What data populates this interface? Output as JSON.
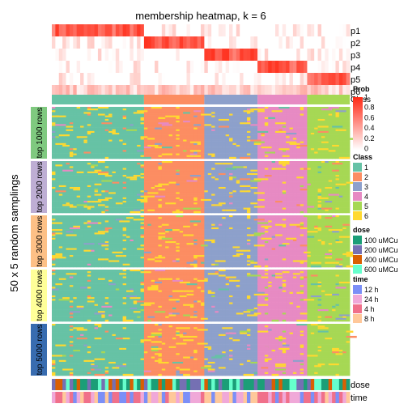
{
  "chart_data": {
    "type": "heatmap",
    "title": "membership heatmap, k = 6",
    "y_group_label": "50 x 5 random samplings",
    "membership_rows": [
      "p1",
      "p2",
      "p3",
      "p4",
      "p5",
      "p6"
    ],
    "class_row_label": "Class",
    "column_class_sizes": [
      26,
      17,
      15,
      14,
      12
    ],
    "row_groups": [
      {
        "label": "top 1000 rows",
        "color": "#7fc97f"
      },
      {
        "label": "top 2000 rows",
        "color": "#beaed4"
      },
      {
        "label": "top 3000 rows",
        "color": "#fdc086"
      },
      {
        "label": "top 4000 rows",
        "color": "#ffff99"
      },
      {
        "label": "top 5000 rows",
        "color": "#386cb0"
      }
    ],
    "bottom_annotations": [
      "dose",
      "time"
    ],
    "legends": {
      "prob": {
        "title": "Prob",
        "ticks": [
          "1",
          "0.8",
          "0.6",
          "0.4",
          "0.2",
          "0"
        ]
      },
      "class": {
        "title": "Class",
        "items": [
          {
            "label": "1",
            "color": "#66c2a5"
          },
          {
            "label": "2",
            "color": "#fc8d62"
          },
          {
            "label": "3",
            "color": "#8da0cb"
          },
          {
            "label": "4",
            "color": "#e78ac3"
          },
          {
            "label": "5",
            "color": "#a6d854"
          },
          {
            "label": "6",
            "color": "#ffd92f"
          }
        ]
      },
      "dose": {
        "title": "dose",
        "items": [
          {
            "label": "100 uMCu",
            "color": "#1b9e77"
          },
          {
            "label": "200 uMCu",
            "color": "#7570b3"
          },
          {
            "label": "400 uMCu",
            "color": "#d95f02"
          },
          {
            "label": "600 uMCu",
            "color": "#66ffcc"
          }
        ]
      },
      "time": {
        "title": "time",
        "items": [
          {
            "label": "12 h",
            "color": "#7b8ff7"
          },
          {
            "label": "24 h",
            "color": "#f0a8d8"
          },
          {
            "label": "4 h",
            "color": "#f0708a"
          },
          {
            "label": "8 h",
            "color": "#ffc89a"
          }
        ]
      }
    }
  }
}
